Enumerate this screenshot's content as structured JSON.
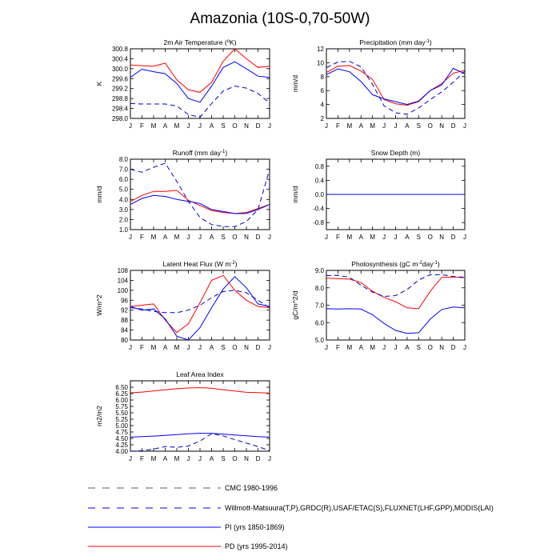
{
  "title": "Amazonia (10S-0,70-50W)",
  "months": [
    "J",
    "F",
    "M",
    "A",
    "M",
    "J",
    "J",
    "A",
    "S",
    "O",
    "N",
    "D",
    "J"
  ],
  "colors": {
    "pi": "#0000ff",
    "pd": "#ff0000",
    "cmc": "#5a5a7a",
    "obs": "#0000cc",
    "axis": "#000000"
  },
  "legend": [
    {
      "key": "cmc",
      "label": "CMC 1980-1996",
      "style": "dash-grey"
    },
    {
      "key": "obs",
      "label": "Willmott-Matsuura(T,P),GRDC(R),USAF/ETAC(S),FLUXNET(LHF,GPP),MODIS(LAI)",
      "style": "dash-blue"
    },
    {
      "key": "pi",
      "label": "PI (yrs 1850-1869)",
      "style": "solid-blue"
    },
    {
      "key": "pd",
      "label": "PD (yrs 1995-2014)",
      "style": "solid-red"
    }
  ],
  "chart_data": [
    {
      "id": "t2m",
      "type": "line",
      "title": "2m Air Temperature (",
      "title_sup": "o",
      "title_post": "K)",
      "ylabel": "K",
      "ylim": [
        298.0,
        300.8
      ],
      "yticks": [
        298.0,
        298.4,
        298.8,
        299.2,
        299.6,
        300.0,
        300.4,
        300.8
      ],
      "ytick_labels": [
        "298.0",
        "298.4",
        "298.8",
        "299.2",
        "299.6",
        "300.0",
        "300.4",
        "300.8"
      ],
      "series": [
        {
          "name": "PD",
          "key": "pd",
          "values": [
            300.15,
            300.12,
            300.1,
            300.22,
            299.55,
            299.15,
            299.05,
            299.45,
            300.3,
            300.8,
            300.4,
            300.05,
            300.1
          ]
        },
        {
          "name": "PI",
          "key": "pi",
          "values": [
            299.65,
            299.98,
            299.88,
            299.8,
            299.4,
            298.8,
            298.65,
            299.3,
            300.05,
            300.28,
            300.0,
            299.7,
            299.65
          ]
        },
        {
          "name": "Obs",
          "key": "obs",
          "values": [
            298.6,
            298.58,
            298.58,
            298.58,
            298.5,
            298.15,
            298.05,
            298.6,
            299.1,
            299.3,
            299.22,
            299.0,
            298.62
          ]
        }
      ]
    },
    {
      "id": "precip",
      "type": "line",
      "title": "Precipitation (mm day",
      "title_sup": "-1",
      "title_post": ")",
      "ylabel": "mm/d",
      "ylim": [
        2,
        12
      ],
      "yticks": [
        2,
        4,
        6,
        8,
        10,
        12
      ],
      "ytick_labels": [
        "2",
        "4",
        "6",
        "8",
        "10",
        "12"
      ],
      "series": [
        {
          "name": "PD",
          "key": "pd",
          "values": [
            8.6,
            9.5,
            9.6,
            8.8,
            7.6,
            4.7,
            4.1,
            3.9,
            4.4,
            6.0,
            7.0,
            8.5,
            8.9
          ]
        },
        {
          "name": "PI",
          "key": "pi",
          "values": [
            8.3,
            9.1,
            8.7,
            7.3,
            5.4,
            4.8,
            4.4,
            4.0,
            4.5,
            6.0,
            6.8,
            9.2,
            8.4
          ]
        },
        {
          "name": "Obs",
          "key": "obs",
          "values": [
            9.3,
            10.1,
            10.2,
            9.4,
            6.9,
            3.8,
            2.8,
            2.6,
            3.5,
            4.7,
            5.8,
            7.2,
            8.8
          ]
        }
      ]
    },
    {
      "id": "runoff",
      "type": "line",
      "title": "Runoff (mm day",
      "title_sup": "-1",
      "title_post": ")",
      "ylabel": "mm/d",
      "ylim": [
        1.0,
        8.0
      ],
      "yticks": [
        1.0,
        2.0,
        3.0,
        4.0,
        5.0,
        6.0,
        7.0,
        8.0
      ],
      "ytick_labels": [
        "1.0",
        "2.0",
        "3.0",
        "4.0",
        "5.0",
        "6.0",
        "7.0",
        "8.0"
      ],
      "series": [
        {
          "name": "PD",
          "key": "pd",
          "values": [
            3.8,
            4.4,
            4.8,
            4.8,
            4.9,
            3.9,
            3.4,
            2.9,
            2.7,
            2.6,
            2.7,
            3.1,
            3.5
          ]
        },
        {
          "name": "PI",
          "key": "pi",
          "values": [
            3.5,
            4.1,
            4.4,
            4.3,
            4.0,
            3.8,
            3.6,
            3.0,
            2.8,
            2.6,
            2.6,
            3.0,
            3.5
          ]
        },
        {
          "name": "Obs",
          "key": "obs",
          "values": [
            7.0,
            6.7,
            7.2,
            7.6,
            5.8,
            3.8,
            2.2,
            1.5,
            1.3,
            1.3,
            1.8,
            3.0,
            7.0
          ]
        }
      ]
    },
    {
      "id": "snow",
      "type": "line",
      "title": "Snow Depth (m)",
      "title_sup": "",
      "title_post": "",
      "ylabel": "mm/d",
      "ylim": [
        -1.0,
        1.0
      ],
      "yticks": [
        -0.8,
        -0.4,
        0.0,
        0.4,
        0.8
      ],
      "ytick_labels": [
        "-0.8",
        "-0.4",
        "0.0",
        "0.4",
        "0.8"
      ],
      "series": [
        {
          "name": "PD",
          "key": "pd",
          "values": [
            0,
            0,
            0,
            0,
            0,
            0,
            0,
            0,
            0,
            0,
            0,
            0,
            0
          ]
        },
        {
          "name": "PI",
          "key": "pi",
          "values": [
            0,
            0,
            0,
            0,
            0,
            0,
            0,
            0,
            0,
            0,
            0,
            0,
            0
          ]
        },
        {
          "name": "Obs",
          "key": "obs",
          "values": [
            0,
            0,
            0,
            0,
            0,
            0,
            0,
            0,
            0,
            0,
            0,
            0,
            0
          ]
        }
      ]
    },
    {
      "id": "lhf",
      "type": "line",
      "title": "Latent Heat Flux (W m",
      "title_sup": "-2",
      "title_post": ")",
      "ylabel": "W/m^2",
      "ylim": [
        80,
        108
      ],
      "yticks": [
        80,
        84,
        88,
        92,
        96,
        100,
        104,
        108
      ],
      "ytick_labels": [
        "80",
        "84",
        "88",
        "92",
        "96",
        "100",
        "104",
        "108"
      ],
      "series": [
        {
          "name": "PD",
          "key": "pd",
          "values": [
            93.5,
            94.0,
            94.5,
            88.0,
            83.0,
            86.5,
            95.0,
            104.0,
            106.0,
            100.0,
            96.0,
            93.5,
            93.0
          ]
        },
        {
          "name": "PI",
          "key": "pi",
          "values": [
            93.5,
            92.0,
            92.5,
            88.5,
            81.5,
            80.0,
            85.0,
            93.0,
            100.5,
            105.5,
            101.0,
            94.5,
            93.5
          ]
        },
        {
          "name": "Obs",
          "key": "obs",
          "values": [
            93.0,
            92.5,
            91.5,
            91.0,
            91.0,
            92.0,
            94.0,
            97.0,
            99.5,
            100.0,
            99.0,
            96.0,
            93.0
          ]
        }
      ]
    },
    {
      "id": "gpp",
      "type": "line",
      "title": "Photosynthesis (gC m",
      "title_sup": "-2",
      "title_post": "day",
      "title_sup2": "-1",
      "title_post2": ")",
      "ylabel": "gC/m^2/d",
      "ylim": [
        5.0,
        9.0
      ],
      "yticks": [
        5.0,
        6.0,
        7.0,
        8.0,
        9.0
      ],
      "ytick_labels": [
        "5.0",
        "6.0",
        "7.0",
        "8.0",
        "9.0"
      ],
      "series": [
        {
          "name": "PD",
          "key": "pd",
          "values": [
            8.55,
            8.52,
            8.5,
            8.3,
            7.8,
            7.45,
            7.2,
            6.85,
            6.8,
            7.8,
            8.6,
            8.62,
            8.58
          ]
        },
        {
          "name": "PI",
          "key": "pi",
          "values": [
            6.8,
            6.78,
            6.8,
            6.78,
            6.45,
            5.95,
            5.55,
            5.38,
            5.42,
            6.2,
            6.75,
            6.9,
            6.85
          ]
        },
        {
          "name": "Obs",
          "key": "obs",
          "values": [
            8.7,
            8.72,
            8.6,
            8.15,
            7.75,
            7.5,
            7.55,
            7.9,
            8.45,
            8.75,
            8.75,
            8.65,
            8.6
          ]
        }
      ]
    },
    {
      "id": "lai",
      "type": "line",
      "title": "Leaf Area Index",
      "title_sup": "",
      "title_post": "",
      "ylabel": "m2/m2",
      "ylim": [
        4.0,
        6.75
      ],
      "yticks": [
        4.0,
        4.25,
        4.5,
        4.75,
        5.0,
        5.25,
        5.5,
        5.75,
        6.0,
        6.25,
        6.5
      ],
      "ytick_labels": [
        "4.00",
        "4.25",
        "4.50",
        "4.75",
        "5.00",
        "5.25",
        "5.50",
        "5.75",
        "6.00",
        "6.25",
        "6.50"
      ],
      "series": [
        {
          "name": "PD",
          "key": "pd",
          "values": [
            6.28,
            6.31,
            6.35,
            6.4,
            6.44,
            6.47,
            6.48,
            6.46,
            6.4,
            6.35,
            6.3,
            6.29,
            6.27
          ]
        },
        {
          "name": "PI",
          "key": "pi",
          "values": [
            4.55,
            4.57,
            4.59,
            4.62,
            4.65,
            4.68,
            4.7,
            4.7,
            4.67,
            4.63,
            4.6,
            4.57,
            4.55
          ]
        },
        {
          "name": "Obs",
          "key": "obs",
          "values": [
            4.0,
            4.02,
            4.08,
            4.18,
            4.15,
            4.2,
            4.4,
            4.68,
            4.6,
            4.45,
            4.32,
            4.18,
            4.02
          ]
        }
      ]
    }
  ]
}
